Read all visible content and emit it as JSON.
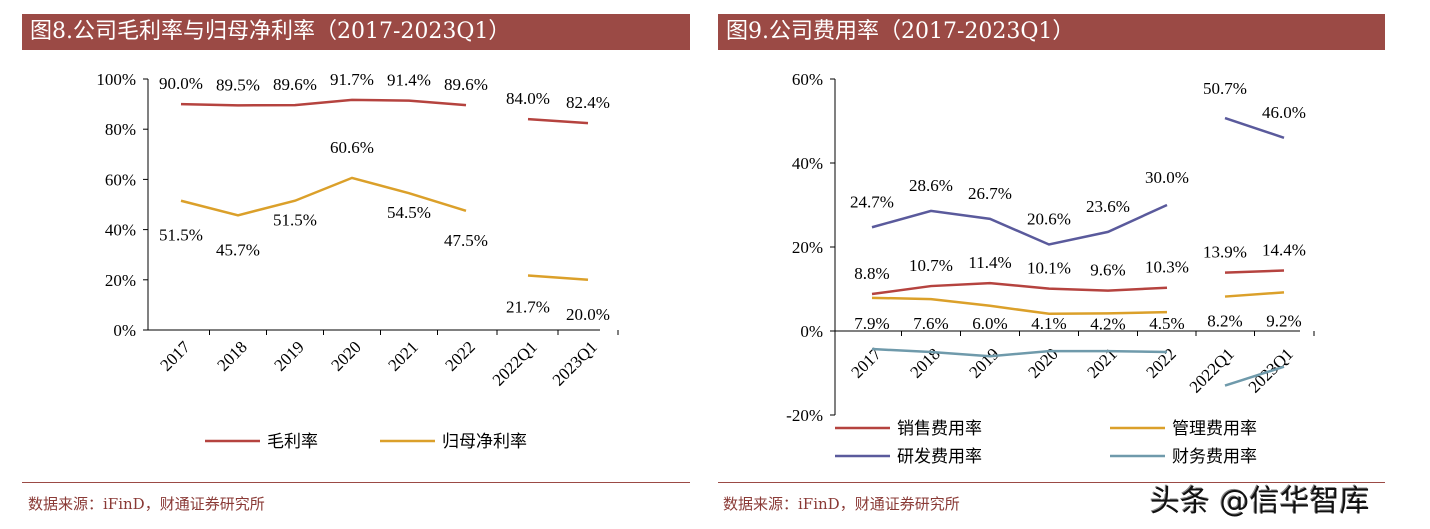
{
  "left": {
    "title": "图8.公司毛利率与归母净利率（2017-2023Q1）",
    "source": "数据来源：iFinD，财通证券研究所"
  },
  "right": {
    "title": "图9.公司费用率（2017-2023Q1）",
    "source": "数据来源：iFinD，财通证券研究所"
  },
  "watermark": "头条 @信华智库",
  "chart_data": [
    {
      "type": "line",
      "categories": [
        "2017",
        "2018",
        "2019",
        "2020",
        "2021",
        "2022",
        "2022Q1",
        "2023Q1"
      ],
      "ylim": [
        0,
        100
      ],
      "yticks": [
        "0%",
        "20%",
        "40%",
        "60%",
        "80%",
        "100%"
      ],
      "legend": "bottom",
      "series": [
        {
          "name": "毛利率",
          "color": "#b5433f",
          "values": [
            90.0,
            89.5,
            89.6,
            91.7,
            91.4,
            89.6,
            84.0,
            82.4
          ],
          "labels": [
            "90.0%",
            "89.5%",
            "89.6%",
            "91.7%",
            "91.4%",
            "89.6%",
            "84.0%",
            "82.4%"
          ]
        },
        {
          "name": "归母净利率",
          "color": "#dba02a",
          "values": [
            51.5,
            45.7,
            51.5,
            60.6,
            54.5,
            47.5,
            21.7,
            20.0
          ],
          "labels": [
            "51.5%",
            "45.7%",
            "51.5%",
            "60.6%",
            "54.5%",
            "47.5%",
            "21.7%",
            "20.0%"
          ]
        }
      ]
    },
    {
      "type": "line",
      "categories": [
        "2017",
        "2018",
        "2019",
        "2020",
        "2021",
        "2022",
        "2022Q1",
        "2023Q1"
      ],
      "ylim": [
        -20,
        60
      ],
      "yticks": [
        "-20%",
        "0%",
        "20%",
        "40%",
        "60%"
      ],
      "legend": "bottom",
      "series": [
        {
          "name": "销售费用率",
          "color": "#b5433f",
          "values": [
            8.8,
            10.7,
            11.4,
            10.1,
            9.6,
            10.3,
            13.9,
            14.4
          ],
          "labels": [
            "8.8%",
            "10.7%",
            "11.4%",
            "10.1%",
            "9.6%",
            "10.3%",
            "13.9%",
            "14.4%"
          ]
        },
        {
          "name": "管理费用率",
          "color": "#dba02a",
          "values": [
            7.9,
            7.6,
            6.0,
            4.1,
            4.2,
            4.5,
            8.2,
            9.2
          ],
          "labels": [
            "7.9%",
            "7.6%",
            "6.0%",
            "4.1%",
            "4.2%",
            "4.5%",
            "8.2%",
            "9.2%"
          ]
        },
        {
          "name": "研发费用率",
          "color": "#5a5a9c",
          "values": [
            24.7,
            28.6,
            26.7,
            20.6,
            23.6,
            30.0,
            50.7,
            46.0
          ],
          "labels": [
            "24.7%",
            "28.6%",
            "26.7%",
            "20.6%",
            "23.6%",
            "30.0%",
            "50.7%",
            "46.0%"
          ]
        },
        {
          "name": "财务费用率",
          "color": "#6f9aab",
          "values": [
            -4.3,
            -5.0,
            -6.0,
            -4.8,
            -4.8,
            -5.0,
            -13.0,
            -8.5
          ],
          "labels": []
        }
      ]
    }
  ]
}
